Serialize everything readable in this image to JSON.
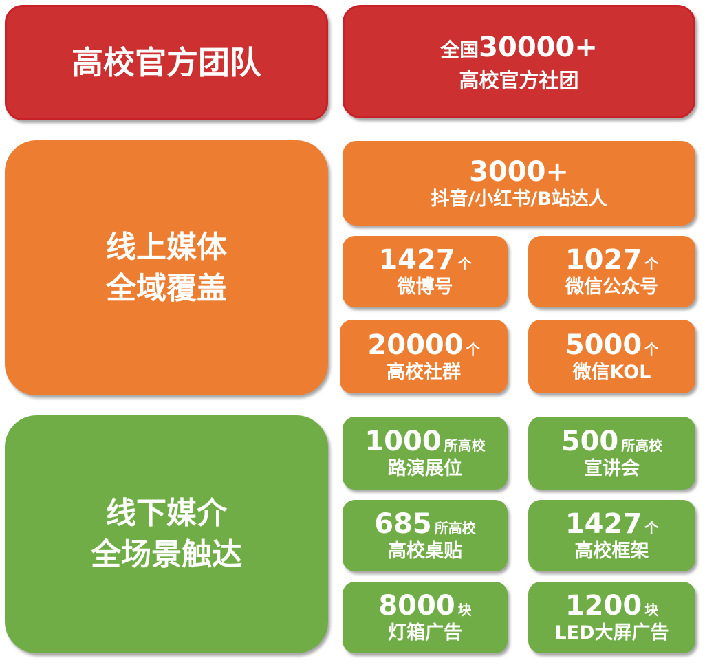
{
  "colors": {
    "red": "#CD3030",
    "orange": "#ED7D31",
    "green": "#70AD47"
  },
  "team": {
    "title": "高校官方团队",
    "stat_line1_prefix": "全国",
    "stat_line1_number": "30000+",
    "stat_line2": "高校官方社团"
  },
  "online": {
    "title_line1": "线上媒体",
    "title_line2": "全域覆盖",
    "headline": {
      "number": "3000+",
      "label": "抖音/小红书/B站达人"
    },
    "items": [
      {
        "number": "1427",
        "unit": "个",
        "label": "微博号"
      },
      {
        "number": "1027",
        "unit": "个",
        "label": "微信公众号"
      },
      {
        "number": "20000",
        "unit": "个",
        "label": "高校社群"
      },
      {
        "number": "5000",
        "unit": "个",
        "label": "微信KOL"
      }
    ]
  },
  "offline": {
    "title_line1": "线下媒介",
    "title_line2": "全场景触达",
    "items": [
      {
        "number": "1000",
        "unit": "所高校",
        "label": "路演展位"
      },
      {
        "number": "500",
        "unit": "所高校",
        "label": "宣讲会"
      },
      {
        "number": "685",
        "unit": "所高校",
        "label": "高校桌贴"
      },
      {
        "number": "1427",
        "unit": "个",
        "label": "高校框架"
      },
      {
        "number": "8000",
        "unit": "块",
        "label": "灯箱广告"
      },
      {
        "number": "1200",
        "unit": "块",
        "label": "LED大屏广告"
      }
    ]
  }
}
